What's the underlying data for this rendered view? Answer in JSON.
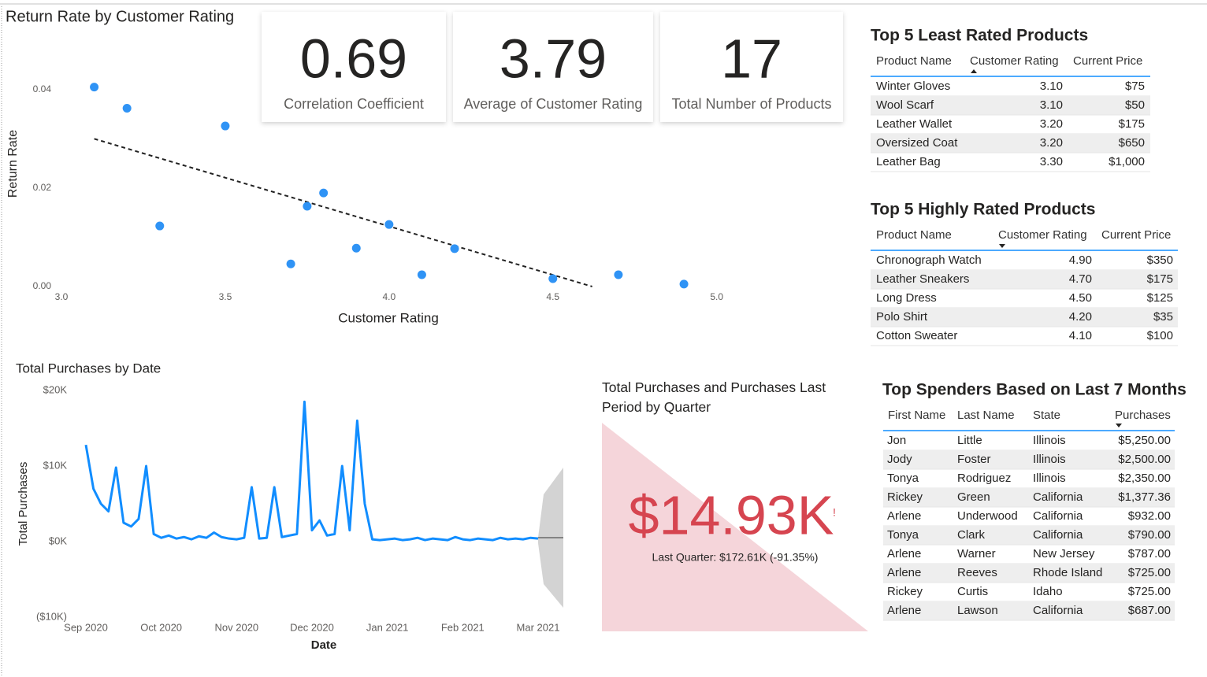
{
  "chart_data": [
    {
      "type": "scatter",
      "title": "Return Rate by Customer Rating",
      "x_label": "Customer Rating",
      "y_label": "Return Rate",
      "x": [
        3.1,
        3.2,
        3.5,
        3.3,
        3.75,
        3.8,
        3.7,
        3.9,
        4.0,
        4.1,
        4.2,
        4.5,
        4.7,
        4.9
      ],
      "values": [
        0.0405,
        0.0362,
        0.0326,
        0.0123,
        0.0163,
        0.019,
        0.0046,
        0.0078,
        0.0126,
        0.0024,
        0.0077,
        0.0016,
        0.0024,
        0.0005
      ],
      "color": "#2f93f5",
      "xlim": [
        3,
        5.4
      ],
      "ylim": [
        0,
        0.043
      ],
      "xticks": [
        {
          "value": 3,
          "label": "3.0"
        },
        3.5,
        {
          "value": 4,
          "label": "4.0"
        },
        4.5,
        {
          "value": 5,
          "label": "5.0"
        }
      ],
      "yticks": [
        {
          "value": 0,
          "label": "0.00"
        },
        0.02,
        0.04
      ],
      "trend_line": {
        "x": [
          3.1,
          4.62
        ],
        "values": [
          0.03,
          0
        ]
      }
    },
    {
      "type": "line",
      "title": "Total Purchases by Date",
      "x_label": "Date",
      "y_label": "Total Purchases",
      "categories": [
        "Sep 2020",
        null,
        null,
        null,
        null,
        null,
        null,
        null,
        null,
        null,
        "Oct 2020",
        null,
        null,
        null,
        null,
        null,
        null,
        null,
        null,
        null,
        "Nov 2020",
        null,
        null,
        null,
        null,
        null,
        null,
        null,
        null,
        null,
        "Dec 2020",
        null,
        null,
        null,
        null,
        null,
        null,
        null,
        null,
        null,
        "Jan 2021",
        null,
        null,
        null,
        null,
        null,
        null,
        null,
        null,
        null,
        "Feb 2021",
        null,
        null,
        null,
        null,
        null,
        null,
        null,
        null,
        null,
        "Mar 2021"
      ],
      "values": [
        12800,
        7000,
        5000,
        4000,
        9800,
        2500,
        2000,
        3000,
        10000,
        1000,
        500,
        800,
        400,
        600,
        300,
        700,
        500,
        1200,
        600,
        400,
        300,
        500,
        7200,
        400,
        500,
        7200,
        600,
        800,
        1000,
        18500,
        1500,
        2800,
        800,
        1000,
        10000,
        1500,
        16000,
        5000,
        300,
        200,
        300,
        400,
        200,
        300,
        500,
        200,
        400,
        300,
        200,
        600,
        300,
        200,
        400,
        300,
        200,
        500,
        300,
        400,
        300,
        500,
        400
      ],
      "color": "#118dff",
      "ylim": [
        -10000,
        20000
      ],
      "yticks": [
        {
          "value": -10000,
          "label": "($10K)"
        },
        {
          "value": 0,
          "label": "$0K"
        },
        {
          "value": 10000,
          "label": "$10K"
        },
        {
          "value": 20000,
          "label": "$20K"
        }
      ]
    }
  ],
  "cards": [
    {
      "value": 0.69,
      "label": "Correlation Coefficient"
    },
    {
      "value": 3.79,
      "label": "Average of Customer Rating"
    },
    {
      "value": 17,
      "label": "Total Number of Products"
    }
  ],
  "least_rated": {
    "title": "Top 5 Least Rated Products",
    "columns": [
      "Product Name",
      "Customer Rating",
      "Current Price"
    ],
    "rows": [
      [
        "Winter Gloves",
        "3.10",
        "$75"
      ],
      [
        "Wool Scarf",
        "3.10",
        "$50"
      ],
      [
        "Leather Wallet",
        "3.20",
        "$175"
      ],
      [
        "Oversized Coat",
        "3.20",
        "$650"
      ],
      [
        "Leather Bag",
        "3.30",
        "$1,000"
      ]
    ]
  },
  "highly_rated": {
    "title": "Top 5 Highly Rated Products",
    "columns": [
      "Product Name",
      "Customer Rating",
      "Current Price"
    ],
    "rows": [
      [
        "Chronograph Watch",
        "4.90",
        "$350"
      ],
      [
        "Leather Sneakers",
        "4.70",
        "$175"
      ],
      [
        "Long Dress",
        "4.50",
        "$125"
      ],
      [
        "Polo Shirt",
        "4.20",
        "$35"
      ],
      [
        "Cotton Sweater",
        "4.10",
        "$100"
      ]
    ]
  },
  "top_spenders": {
    "title": "Top Spenders Based on Last 7 Months",
    "columns": [
      "First Name",
      "Last Name",
      "State",
      "Purchases"
    ],
    "rows": [
      [
        "Jon",
        "Little",
        "Illinois",
        "$5,250.00"
      ],
      [
        "Jody",
        "Foster",
        "Illinois",
        "$2,500.00"
      ],
      [
        "Tonya",
        "Rodriguez",
        "Illinois",
        "$2,350.00"
      ],
      [
        "Rickey",
        "Green",
        "California",
        "$1,377.36"
      ],
      [
        "Arlene",
        "Underwood",
        "California",
        "$932.00"
      ],
      [
        "Tonya",
        "Clark",
        "California",
        "$790.00"
      ],
      [
        "Arlene",
        "Warner",
        "New Jersey",
        "$787.00"
      ],
      [
        "Arlene",
        "Reeves",
        "Rhode Island",
        "$725.00"
      ],
      [
        "Rickey",
        "Curtis",
        "Idaho",
        "$725.00"
      ],
      [
        "Arlene",
        "Lawson",
        "California",
        "$687.00"
      ]
    ]
  },
  "quarter_kpi": {
    "title": "Total Purchases and Purchases Last Period by Quarter",
    "value": "$14.93K",
    "alert": "!",
    "subtitle": "Last Quarter: $172.61K (-91.35%)"
  }
}
